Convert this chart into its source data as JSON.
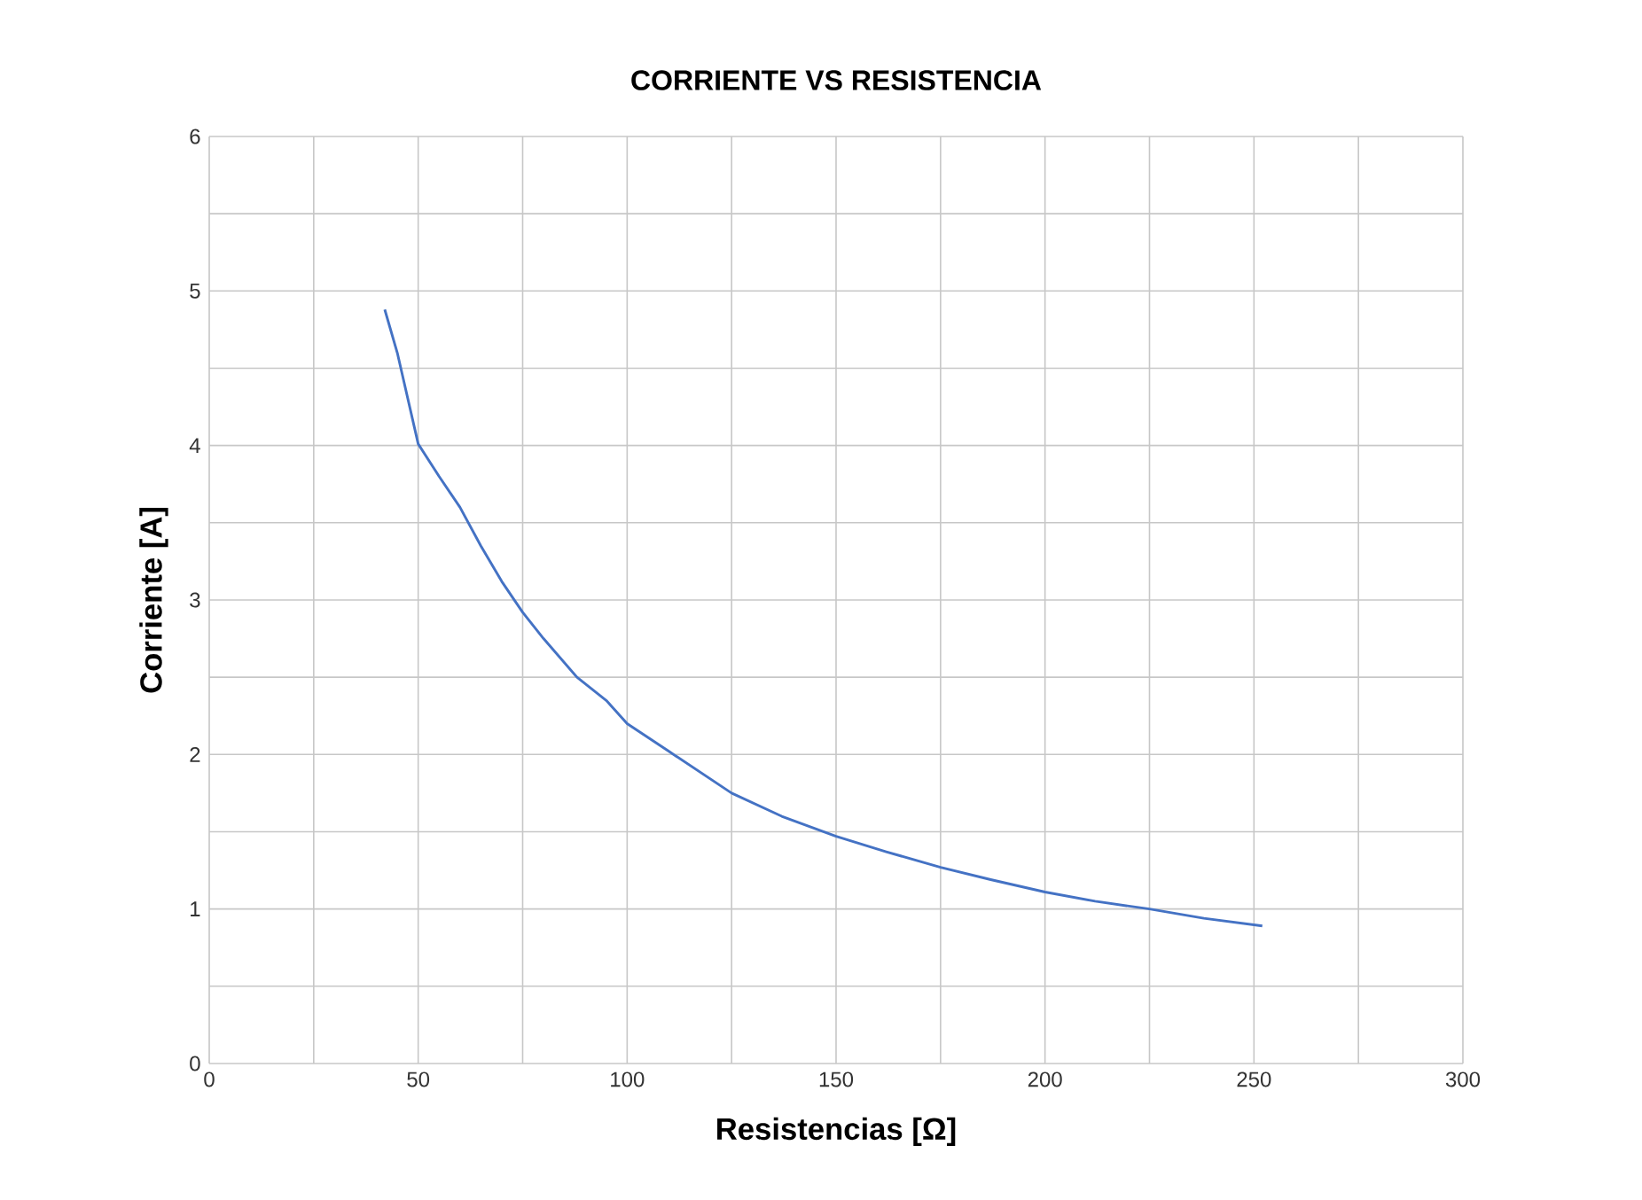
{
  "chart_data": {
    "type": "line",
    "title": "CORRIENTE VS RESISTENCIA",
    "xlabel": "Resistencias [Ω]",
    "ylabel": "Corriente [A]",
    "x": [
      42,
      45,
      50,
      55,
      60,
      65,
      70,
      75,
      80,
      88,
      95,
      100,
      110,
      125,
      137,
      150,
      162,
      175,
      187,
      200,
      212,
      225,
      238,
      252
    ],
    "series": [
      {
        "color": "#4472c4",
        "values": [
          4.88,
          4.6,
          4.01,
          3.8,
          3.6,
          3.35,
          3.12,
          2.92,
          2.75,
          2.5,
          2.35,
          2.2,
          2.02,
          1.75,
          1.6,
          1.47,
          1.37,
          1.27,
          1.19,
          1.11,
          1.05,
          1.0,
          0.94,
          0.89
        ]
      }
    ],
    "xlim": [
      0,
      300
    ],
    "xticks": [
      0,
      {
        "value": 25,
        "label": null
      },
      50,
      {
        "value": 75,
        "label": null
      },
      100,
      {
        "value": 125,
        "label": null
      },
      150,
      {
        "value": 175,
        "label": null
      },
      200,
      {
        "value": 225,
        "label": null
      },
      250,
      {
        "value": 275,
        "label": null
      },
      300
    ],
    "ylim": [
      0,
      6
    ],
    "yticks": [
      0,
      {
        "value": 0.5,
        "label": null
      },
      1,
      {
        "value": 1.5,
        "label": null
      },
      2,
      {
        "value": 2.5,
        "label": null
      },
      3,
      {
        "value": 3.5,
        "label": null
      },
      4,
      {
        "value": 4.5,
        "label": null
      },
      5,
      {
        "value": 5.5,
        "label": null
      },
      6
    ],
    "grid": true,
    "marker": "none"
  }
}
